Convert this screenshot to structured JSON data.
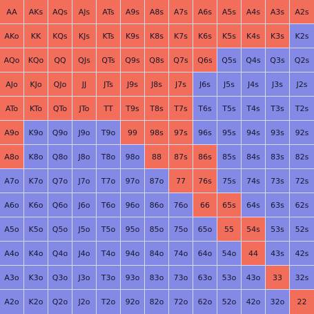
{
  "colors": {
    "selected": "#f26e5a",
    "unselected": "#8489e6"
  },
  "ranks": [
    "A",
    "K",
    "Q",
    "J",
    "T",
    "9",
    "8",
    "7",
    "6",
    "5",
    "4",
    "3",
    "2"
  ],
  "rows": [
    [
      "AA",
      "AKs",
      "AQs",
      "AJs",
      "ATs",
      "A9s",
      "A8s",
      "A7s",
      "A6s",
      "A5s",
      "A4s",
      "A3s",
      "A2s"
    ],
    [
      "AKo",
      "KK",
      "KQs",
      "KJs",
      "KTs",
      "K9s",
      "K8s",
      "K7s",
      "K6s",
      "K5s",
      "K4s",
      "K3s",
      "K2s"
    ],
    [
      "AQo",
      "KQo",
      "QQ",
      "QJs",
      "QTs",
      "Q9s",
      "Q8s",
      "Q7s",
      "Q6s",
      "Q5s",
      "Q4s",
      "Q3s",
      "Q2s"
    ],
    [
      "AJo",
      "KJo",
      "QJo",
      "JJ",
      "JTs",
      "J9s",
      "J8s",
      "J7s",
      "J6s",
      "J5s",
      "J4s",
      "J3s",
      "J2s"
    ],
    [
      "ATo",
      "KTo",
      "QTo",
      "JTo",
      "TT",
      "T9s",
      "T8s",
      "T7s",
      "T6s",
      "T5s",
      "T4s",
      "T3s",
      "T2s"
    ],
    [
      "A9o",
      "K9o",
      "Q9o",
      "J9o",
      "T9o",
      "99",
      "98s",
      "97s",
      "96s",
      "95s",
      "94s",
      "93s",
      "92s"
    ],
    [
      "A8o",
      "K8o",
      "Q8o",
      "J8o",
      "T8o",
      "98o",
      "88",
      "87s",
      "86s",
      "85s",
      "84s",
      "83s",
      "82s"
    ],
    [
      "A7o",
      "K7o",
      "Q7o",
      "J7o",
      "T7o",
      "97o",
      "87o",
      "77",
      "76s",
      "75s",
      "74s",
      "73s",
      "72s"
    ],
    [
      "A6o",
      "K6o",
      "Q6o",
      "J6o",
      "T6o",
      "96o",
      "86o",
      "76o",
      "66",
      "65s",
      "64s",
      "63s",
      "62s"
    ],
    [
      "A5o",
      "K5o",
      "Q5o",
      "J5o",
      "T5o",
      "95o",
      "85o",
      "75o",
      "65o",
      "55",
      "54s",
      "53s",
      "52s"
    ],
    [
      "A4o",
      "K4o",
      "Q4o",
      "J4o",
      "T4o",
      "94o",
      "84o",
      "74o",
      "64o",
      "54o",
      "44",
      "43s",
      "42s"
    ],
    [
      "A3o",
      "K3o",
      "Q3o",
      "J3o",
      "T3o",
      "93o",
      "83o",
      "73o",
      "63o",
      "53o",
      "43o",
      "33",
      "32s"
    ],
    [
      "A2o",
      "K2o",
      "Q2o",
      "J2o",
      "T2o",
      "92o",
      "82o",
      "72o",
      "62o",
      "52o",
      "42o",
      "32o",
      "22"
    ]
  ],
  "selected": [
    "AA",
    "AKs",
    "AQs",
    "AJs",
    "ATs",
    "A9s",
    "A8s",
    "A7s",
    "A6s",
    "A5s",
    "A4s",
    "A3s",
    "A2s",
    "AKo",
    "KK",
    "KQs",
    "KJs",
    "KTs",
    "K9s",
    "K8s",
    "K7s",
    "K6s",
    "K5s",
    "K4s",
    "K3s",
    "AQo",
    "KQo",
    "QQ",
    "QJs",
    "QTs",
    "Q9s",
    "Q8s",
    "Q7s",
    "Q6s",
    "AJo",
    "KJo",
    "QJo",
    "JJ",
    "JTs",
    "J9s",
    "J8s",
    "J7s",
    "ATo",
    "KTo",
    "QTo",
    "JTo",
    "TT",
    "T9s",
    "T8s",
    "T7s",
    "A9o",
    "99",
    "98s",
    "97s",
    "A8o",
    "88",
    "87s",
    "86s",
    "77",
    "76s",
    "66",
    "65s",
    "55",
    "54s",
    "44",
    "33",
    "22"
  ]
}
